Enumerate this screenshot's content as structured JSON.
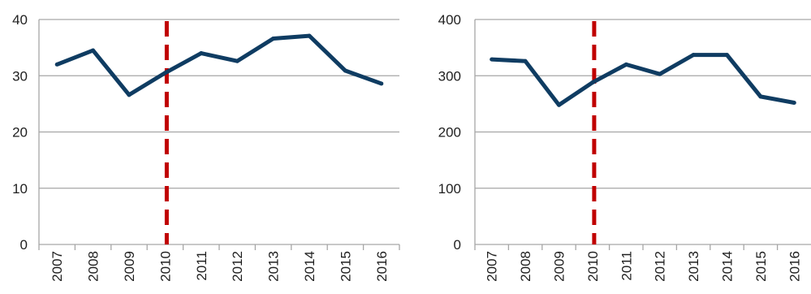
{
  "chart_data": [
    {
      "type": "line",
      "categories": [
        "2007",
        "2008",
        "2009",
        "2010",
        "2011",
        "2012",
        "2013",
        "2014",
        "2015",
        "2016"
      ],
      "series": [
        {
          "values": [
            32.0,
            34.5,
            26.6,
            30.5,
            34.0,
            32.6,
            36.6,
            37.1,
            30.9,
            28.6
          ]
        }
      ],
      "ylim": [
        0,
        40
      ],
      "yticks": [
        0,
        10,
        20,
        30,
        40
      ],
      "reference_line": {
        "category": "2010",
        "style": "dashed"
      },
      "grid": true,
      "colors": {
        "series": "#0f3c62",
        "reference": "#c00000",
        "grid": "#a6a6a6"
      }
    },
    {
      "type": "line",
      "categories": [
        "2007",
        "2008",
        "2009",
        "2010",
        "2011",
        "2012",
        "2013",
        "2014",
        "2015",
        "2016"
      ],
      "series": [
        {
          "values": [
            329,
            326,
            248,
            288,
            320,
            303,
            337,
            337,
            263,
            252
          ]
        }
      ],
      "ylim": [
        0,
        400
      ],
      "yticks": [
        0,
        100,
        200,
        300,
        400
      ],
      "reference_line": {
        "category": "2010",
        "style": "dashed"
      },
      "grid": true,
      "colors": {
        "series": "#0f3c62",
        "reference": "#c00000",
        "grid": "#a6a6a6"
      }
    }
  ]
}
